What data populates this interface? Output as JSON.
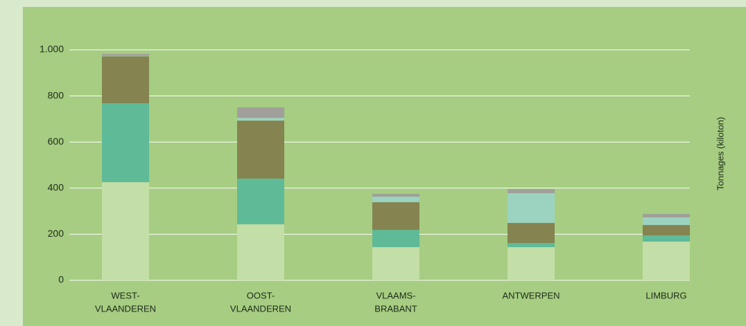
{
  "chart_data": {
    "type": "stacked_bar",
    "y_axis_label": "Tonnages (kiloton)",
    "categories": [
      [
        "WEST-",
        "VLAANDEREN"
      ],
      [
        "OOST-",
        "VLAANDEREN"
      ],
      [
        "VLAAMS-",
        "BRABANT"
      ],
      [
        "ANTWERPEN"
      ],
      [
        "LIMBURG"
      ]
    ],
    "series": [
      {
        "color": "#c3dea6",
        "values": [
          426,
          243,
          144,
          144,
          168
        ]
      },
      {
        "color": "#5fba98",
        "values": [
          342,
          198,
          75,
          18,
          27
        ]
      },
      {
        "color": "#858350",
        "values": [
          204,
          252,
          120,
          87,
          45
        ]
      },
      {
        "color": "#9bd3c0",
        "values": [
          2,
          12,
          24,
          129,
          33
        ]
      },
      {
        "color": "#a09f9a",
        "values": [
          8,
          45,
          12,
          18,
          15
        ]
      }
    ],
    "ylim": [
      0,
      1000
    ],
    "yticks": [
      0,
      200,
      400,
      600,
      800,
      {
        "value": 1000,
        "label": "1.000"
      }
    ],
    "grid": true
  }
}
